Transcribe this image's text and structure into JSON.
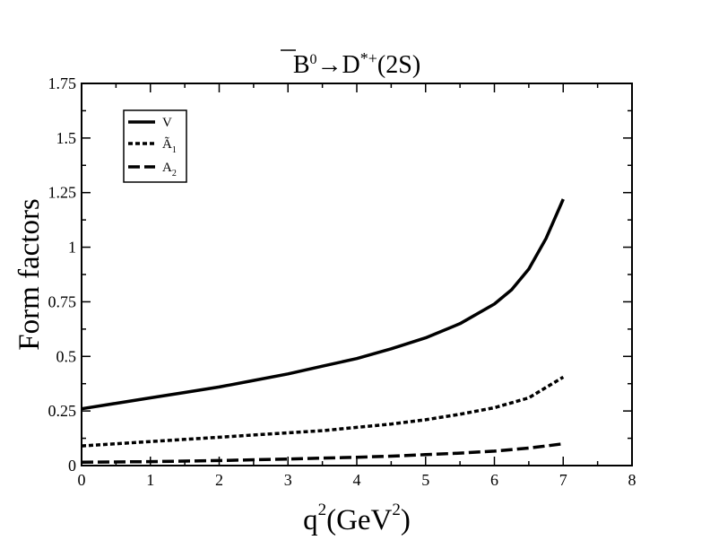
{
  "chart_data": {
    "type": "line",
    "title": {
      "b": "B",
      "b_sup": "0",
      "arrow": "→",
      "d": "D",
      "d_sup": "*+",
      "tail": "(2S)"
    },
    "xlabel": {
      "q": "q",
      "q_sup": "2",
      "unit_open": "(GeV",
      "unit_sup": "2",
      "unit_close": ")"
    },
    "ylabel": "Form factors",
    "xlim": [
      0,
      8
    ],
    "ylim": [
      0,
      1.75
    ],
    "x_ticks": [
      "0",
      "1",
      "2",
      "3",
      "4",
      "5",
      "6",
      "7",
      "8"
    ],
    "y_ticks": [
      "0",
      "0.25",
      "0.5",
      "0.75",
      "1",
      "1.25",
      "1.5",
      "1.75"
    ],
    "y_tick_values": [
      0,
      0.25,
      0.5,
      0.75,
      1,
      1.25,
      1.5,
      1.75
    ],
    "grid": false,
    "legend_position": "top-left",
    "series": [
      {
        "name": "V",
        "style": "solid",
        "x": [
          0,
          0.5,
          1,
          1.5,
          2,
          2.5,
          3,
          3.5,
          4,
          4.5,
          5,
          5.5,
          6,
          6.25,
          6.5,
          6.75,
          7
        ],
        "y": [
          0.26,
          0.285,
          0.31,
          0.335,
          0.36,
          0.39,
          0.42,
          0.455,
          0.49,
          0.535,
          0.585,
          0.65,
          0.74,
          0.805,
          0.9,
          1.04,
          1.22
        ]
      },
      {
        "name": "Ã",
        "name_sub": "1",
        "style": "dotted",
        "x": [
          0,
          0.5,
          1,
          1.5,
          2,
          2.5,
          3,
          3.5,
          4,
          4.5,
          5,
          5.5,
          6,
          6.5,
          7
        ],
        "y": [
          0.09,
          0.1,
          0.11,
          0.12,
          0.13,
          0.14,
          0.15,
          0.16,
          0.175,
          0.19,
          0.21,
          0.235,
          0.265,
          0.31,
          0.405
        ]
      },
      {
        "name": "A",
        "name_sub": "2",
        "style": "dashed",
        "x": [
          0,
          1,
          2,
          3,
          4,
          4.5,
          5,
          5.5,
          6,
          6.5,
          7
        ],
        "y": [
          0.015,
          0.018,
          0.023,
          0.03,
          0.038,
          0.043,
          0.05,
          0.057,
          0.066,
          0.08,
          0.1
        ]
      }
    ]
  }
}
